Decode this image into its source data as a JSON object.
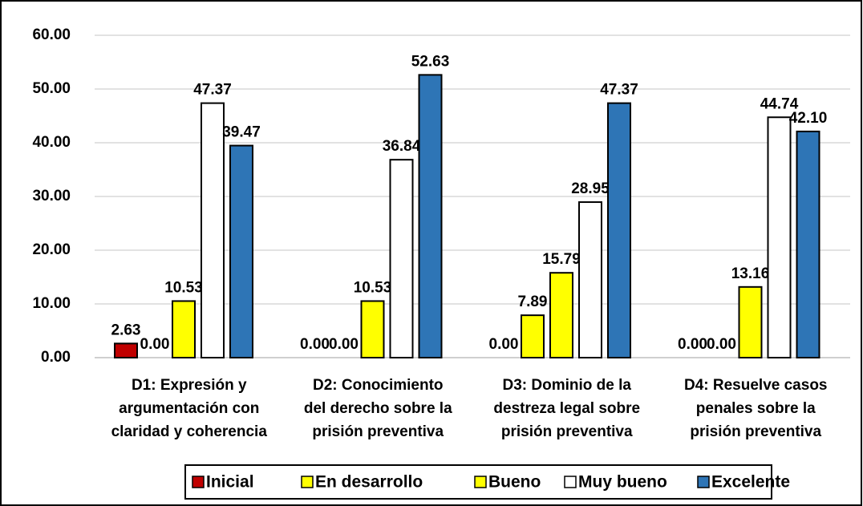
{
  "chart_data": {
    "type": "bar",
    "categories": [
      "D1: Expresión y\nargumentación con\nclaridad y coherencia",
      "D2: Conocimiento\ndel derecho sobre la\nprisión preventiva",
      "D3: Dominio de la\ndestreza legal sobre\nprisión preventiva",
      "D4: Resuelve casos\npenales sobre la\nprisión preventiva"
    ],
    "series": [
      {
        "name": "Inicial",
        "color": "#c00000",
        "values": [
          2.63,
          0,
          0,
          0
        ],
        "value_labels": [
          "2.63",
          "0.00",
          "0.00",
          "0.00"
        ]
      },
      {
        "name": "En desarrollo",
        "color": "#ffff00",
        "values": [
          0,
          0,
          7.89,
          0
        ],
        "value_labels": [
          "0.00",
          "0.00",
          "7.89",
          "0.00"
        ]
      },
      {
        "name": "Bueno",
        "color": "#ffff00",
        "values": [
          10.53,
          10.53,
          15.79,
          13.16
        ],
        "value_labels": [
          "10.53",
          "10.53",
          "15.79",
          "13.16"
        ]
      },
      {
        "name": "Muy bueno",
        "color": "#ffffff",
        "values": [
          47.37,
          36.84,
          28.95,
          44.74
        ],
        "value_labels": [
          "47.37",
          "36.84",
          "28.95",
          "44.74"
        ]
      },
      {
        "name": "Excelente",
        "color": "#2e75b6",
        "values": [
          39.47,
          52.63,
          47.37,
          42.1
        ],
        "value_labels": [
          "39.47",
          "52.63",
          "47.37",
          "42.10"
        ]
      }
    ],
    "ylim": [
      0,
      60
    ],
    "yticks": [
      {
        "value": 0,
        "label": "0.00"
      },
      {
        "value": 10,
        "label": "10.00"
      },
      {
        "value": 20,
        "label": "20.00"
      },
      {
        "value": 30,
        "label": "30.00"
      },
      {
        "value": 40,
        "label": "40.00"
      },
      {
        "value": 50,
        "label": "50.00"
      },
      {
        "value": 60,
        "label": "60.00"
      }
    ],
    "grid": true,
    "legend": "bottom"
  }
}
